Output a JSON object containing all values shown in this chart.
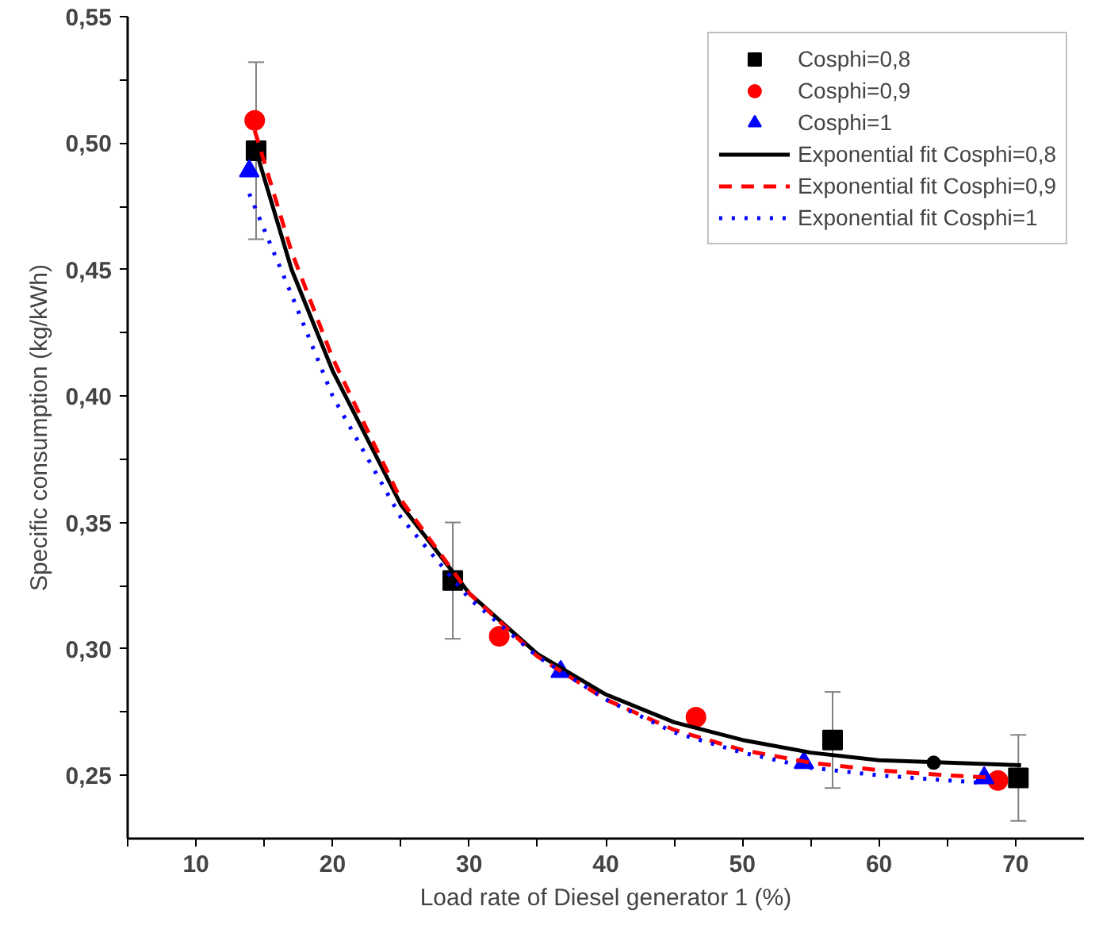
{
  "chart_data": {
    "type": "scatter",
    "xlabel": "Load rate of Diesel generator 1 (%)",
    "ylabel": "Specific consumption (kg/kWh)",
    "xlim": [
      5,
      75
    ],
    "ylim": [
      0.225,
      0.55
    ],
    "xticks": [
      {
        "value": 5,
        "label": null
      },
      10,
      {
        "value": 15,
        "label": null
      },
      20,
      {
        "value": 25,
        "label": null
      },
      30,
      {
        "value": 35,
        "label": null
      },
      40,
      {
        "value": 45,
        "label": null
      },
      50,
      {
        "value": 55,
        "label": null
      },
      60,
      {
        "value": 65,
        "label": null
      },
      70
    ],
    "yticks": [
      {
        "value": 0.25,
        "label": "0,25"
      },
      {
        "value": 0.275,
        "label": null
      },
      {
        "value": 0.3,
        "label": "0,30"
      },
      {
        "value": 0.325,
        "label": null
      },
      {
        "value": 0.35,
        "label": "0,35"
      },
      {
        "value": 0.375,
        "label": null
      },
      {
        "value": 0.4,
        "label": "0,40"
      },
      {
        "value": 0.425,
        "label": null
      },
      {
        "value": 0.45,
        "label": "0,45"
      },
      {
        "value": 0.475,
        "label": null
      },
      {
        "value": 0.5,
        "label": "0,50"
      },
      {
        "value": 0.525,
        "label": null
      },
      {
        "value": 0.55,
        "label": "0,55"
      }
    ],
    "grid": false,
    "legend": "top right",
    "series": [
      {
        "name": "Cosphi=0,8",
        "marker": "square",
        "color": "#000000",
        "x": [
          14.4,
          28.8,
          56.6,
          70.2
        ],
        "values": [
          0.497,
          0.327,
          0.264,
          0.249
        ],
        "errors": [
          0.035,
          0.023,
          0.019,
          0.017
        ]
      },
      {
        "name": "Cosphi=0,9",
        "marker": "circle",
        "color": "#ff0000",
        "x": [
          14.3,
          32.2,
          46.6,
          68.7
        ],
        "values": [
          0.509,
          0.305,
          0.273,
          0.248
        ]
      },
      {
        "name": "Cosphi=1",
        "marker": "triangle",
        "color": "#0000ff",
        "x": [
          13.9,
          36.7,
          54.5,
          67.7
        ],
        "values": [
          0.489,
          0.291,
          0.255,
          0.249
        ]
      },
      {
        "name": "Exponential fit Cosphi=0,8",
        "type": "line",
        "marker": "none",
        "line_style": "solid",
        "color": "#000000",
        "x": [
          14.4,
          17,
          20,
          25,
          30,
          35,
          40,
          45,
          50,
          55,
          60,
          65,
          70.4
        ],
        "values": [
          0.497,
          0.45,
          0.41,
          0.357,
          0.322,
          0.298,
          0.282,
          0.271,
          0.264,
          0.259,
          0.256,
          0.255,
          0.254
        ]
      },
      {
        "name": "Exponential fit Cosphi=0,9",
        "type": "line",
        "marker": "none",
        "line_style": "dashed",
        "color": "#ff0000",
        "x": [
          14.3,
          17,
          20,
          25,
          30,
          35,
          40,
          45,
          50,
          55,
          60,
          65,
          68.8
        ],
        "values": [
          0.505,
          0.457,
          0.415,
          0.359,
          0.322,
          0.297,
          0.28,
          0.268,
          0.26,
          0.255,
          0.252,
          0.25,
          0.249
        ]
      },
      {
        "name": "Exponential fit Cosphi=1",
        "type": "line",
        "marker": "none",
        "line_style": "dotted",
        "color": "#0000ff",
        "x": [
          13.9,
          17,
          20,
          25,
          30,
          35,
          40,
          45,
          50,
          55,
          60,
          65,
          67.8
        ],
        "values": [
          0.48,
          0.44,
          0.4,
          0.352,
          0.32,
          0.297,
          0.28,
          0.267,
          0.259,
          0.253,
          0.25,
          0.248,
          0.247
        ]
      },
      {
        "marker": "circle",
        "color": "#000000",
        "x": [
          64.0
        ],
        "values": [
          0.255
        ]
      }
    ]
  }
}
